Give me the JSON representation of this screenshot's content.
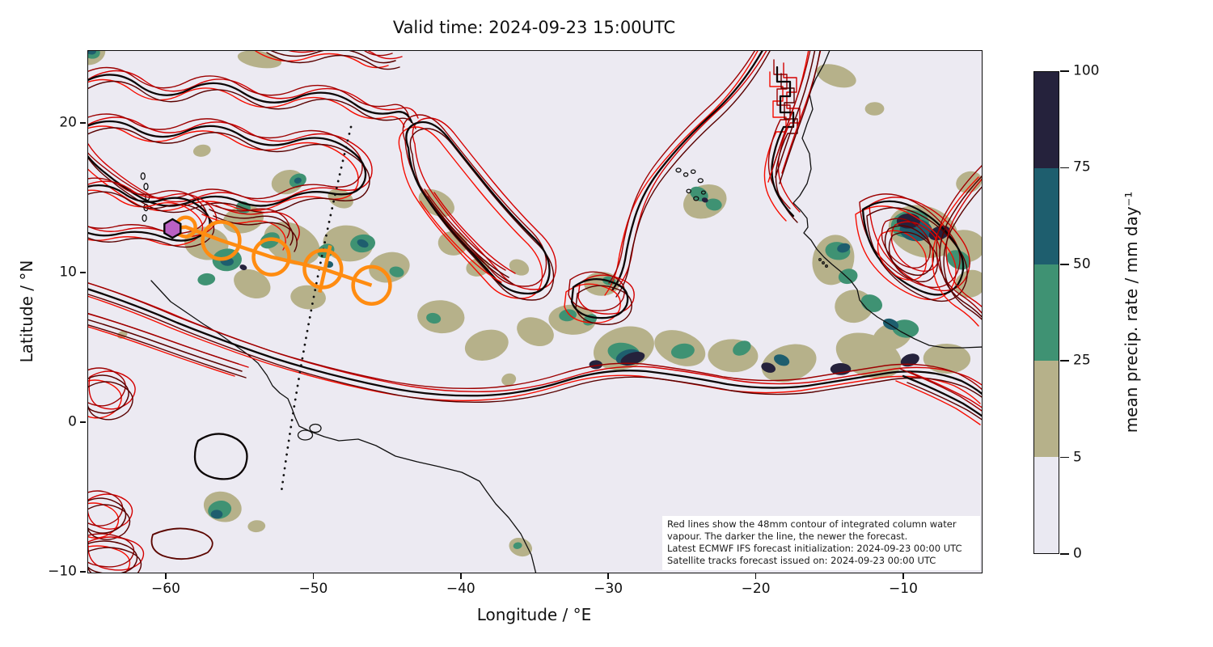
{
  "title": "Valid time: 2024-09-23 15:00UTC",
  "axes": {
    "xlabel": "Longitude / °E",
    "ylabel": "Latitude / °N",
    "xlim": [
      -65.3,
      -4.7
    ],
    "ylim": [
      -10,
      25
    ],
    "xticks": [
      -60,
      -50,
      -40,
      -30,
      -20,
      -10
    ],
    "yticks": [
      20,
      10,
      0,
      -10
    ]
  },
  "colorbar": {
    "label": "mean precip. rate / mm day⁻¹",
    "ticks": [
      0,
      5,
      25,
      50,
      75,
      100
    ],
    "level_edges": [
      0,
      5,
      25,
      50,
      75,
      100
    ],
    "level_colors": [
      "#eae9f2",
      "#b6b18a",
      "#3f9273",
      "#1e5e6e",
      "#25223c"
    ]
  },
  "annotation": {
    "lines": [
      "Red lines show the 48mm contour of integrated column water",
      "vapour. The darker the line, the newer the forecast.",
      "Latest ECMWF IFS forecast initialization: 2024-09-23 00:00 UTC",
      "Satellite tracks forecast issued on: 2024-09-23 00:00 UTC"
    ]
  },
  "chart_data": {
    "type": "map",
    "projection": "plate-carree",
    "map_extent": {
      "lon": [
        -65.3,
        -4.7
      ],
      "lat": [
        -10,
        25
      ]
    },
    "field": {
      "name": "mean precipitation rate",
      "units": "mm day-1",
      "level_edges": [
        0,
        5,
        25,
        50,
        75,
        100
      ],
      "level_colors": [
        "#eae9f2",
        "#b6b18a",
        "#3f9273",
        "#1e5e6e",
        "#25223c"
      ]
    },
    "icwv_contours": {
      "threshold_mm": 48,
      "meaning": "48mm contour of integrated column water vapour; darker line = newer forecast",
      "age_colors": [
        "#f60c00",
        "#d40000",
        "#9c0000",
        "#5a0100"
      ],
      "newest_color": "#0c0606"
    },
    "forecast_track": {
      "color": "#ff8c11",
      "marker_color": "#ba60c3",
      "current_position": {
        "lon": -59.6,
        "lat": 13.0
      },
      "positions": [
        {
          "lon": -58.7,
          "lat": 13.1,
          "r": 0.65
        },
        {
          "lon": -56.3,
          "lat": 12.2,
          "r": 1.25
        },
        {
          "lon": -52.9,
          "lat": 11.1,
          "r": 1.2
        },
        {
          "lon": -49.4,
          "lat": 10.3,
          "r": 1.25,
          "cross": true
        },
        {
          "lon": -46.1,
          "lat": 9.2,
          "r": 1.25
        }
      ]
    },
    "satellite_track": {
      "style": "dotted",
      "color": "#111111",
      "from": {
        "lon": -47.5,
        "lat": 19.8
      },
      "to": {
        "lon": -52.2,
        "lat": -4.6
      }
    },
    "precip_cells": [
      [
        -65.0,
        24.6,
        0.9,
        0.6,
        1
      ],
      [
        -65.1,
        24.8,
        0.6,
        0.45,
        2
      ],
      [
        -65.2,
        24.95,
        0.45,
        0.3,
        3
      ],
      [
        -65.3,
        25.1,
        0.35,
        0.25,
        4
      ],
      [
        -53.7,
        24.3,
        1.5,
        0.55,
        1
      ],
      [
        -57.6,
        18.2,
        0.6,
        0.4,
        1
      ],
      [
        -41.7,
        14.7,
        1.3,
        0.8,
        1
      ],
      [
        -40.6,
        12.0,
        1.0,
        0.8,
        1
      ],
      [
        -38.9,
        10.4,
        0.8,
        0.6,
        1
      ],
      [
        -36.1,
        10.4,
        0.7,
        0.5,
        1
      ],
      [
        -57.3,
        12.0,
        1.5,
        1.1,
        1
      ],
      [
        -54.8,
        13.6,
        1.4,
        0.9,
        1
      ],
      [
        -51.5,
        12.0,
        2.0,
        1.3,
        1
      ],
      [
        -47.7,
        12.0,
        1.7,
        1.2,
        1
      ],
      [
        -44.9,
        10.4,
        1.4,
        1.0,
        1
      ],
      [
        -54.2,
        9.3,
        1.3,
        0.9,
        1
      ],
      [
        -50.4,
        8.4,
        1.2,
        0.8,
        1
      ],
      [
        -51.8,
        16.1,
        1.1,
        0.8,
        1
      ],
      [
        -48.2,
        15.0,
        0.9,
        0.6,
        1
      ],
      [
        -55.9,
        10.9,
        1.0,
        0.75,
        2
      ],
      [
        -51.1,
        16.2,
        0.6,
        0.45,
        2
      ],
      [
        -54.8,
        14.4,
        0.5,
        0.4,
        2
      ],
      [
        -46.7,
        12.0,
        0.85,
        0.6,
        2
      ],
      [
        -49.2,
        11.5,
        0.6,
        0.45,
        2
      ],
      [
        -44.4,
        10.1,
        0.5,
        0.35,
        2
      ],
      [
        -57.3,
        9.6,
        0.6,
        0.4,
        2
      ],
      [
        -53.0,
        12.2,
        0.7,
        0.5,
        2
      ],
      [
        -55.9,
        10.8,
        0.45,
        0.3,
        3
      ],
      [
        -51.1,
        16.2,
        0.25,
        0.2,
        3
      ],
      [
        -46.7,
        12.0,
        0.4,
        0.25,
        3
      ],
      [
        -49.0,
        10.6,
        0.3,
        0.22,
        3
      ],
      [
        -54.8,
        10.4,
        0.25,
        0.18,
        4
      ],
      [
        -41.4,
        7.1,
        1.6,
        1.1,
        1
      ],
      [
        -38.3,
        5.2,
        1.5,
        1.0,
        1
      ],
      [
        -35.0,
        6.1,
        1.3,
        0.9,
        1
      ],
      [
        -32.5,
        6.9,
        1.6,
        1.0,
        1
      ],
      [
        -29.0,
        5.0,
        2.1,
        1.4,
        1
      ],
      [
        -25.2,
        5.0,
        1.8,
        1.1,
        1
      ],
      [
        -21.6,
        4.5,
        1.7,
        1.1,
        1
      ],
      [
        -17.8,
        4.0,
        1.9,
        1.2,
        1
      ],
      [
        -12.4,
        4.5,
        2.3,
        1.4,
        1
      ],
      [
        -7.1,
        4.3,
        1.6,
        1.0,
        1
      ],
      [
        -36.8,
        2.9,
        0.5,
        0.4,
        1
      ],
      [
        -36.0,
        -8.3,
        0.8,
        0.6,
        1
      ],
      [
        -30.5,
        9.3,
        1.2,
        0.8,
        1
      ],
      [
        -41.9,
        7.0,
        0.5,
        0.35,
        2
      ],
      [
        -32.8,
        7.2,
        0.6,
        0.4,
        2
      ],
      [
        -31.3,
        6.9,
        0.5,
        0.35,
        2
      ],
      [
        -29.0,
        4.7,
        1.1,
        0.65,
        2
      ],
      [
        -25.0,
        4.8,
        0.8,
        0.5,
        2
      ],
      [
        -21.0,
        5.0,
        0.65,
        0.45,
        2
      ],
      [
        -30.0,
        9.5,
        0.45,
        0.3,
        2
      ],
      [
        -36.2,
        -8.2,
        0.3,
        0.22,
        2
      ],
      [
        -28.7,
        4.4,
        0.85,
        0.5,
        3
      ],
      [
        -18.3,
        4.2,
        0.55,
        0.35,
        3
      ],
      [
        -30.9,
        3.9,
        0.45,
        0.3,
        4
      ],
      [
        -28.4,
        4.3,
        0.85,
        0.4,
        4
      ],
      [
        -19.2,
        3.7,
        0.5,
        0.32,
        4
      ],
      [
        -14.3,
        3.6,
        0.7,
        0.4,
        4
      ],
      [
        -9.6,
        4.2,
        0.65,
        0.4,
        4
      ],
      [
        -23.5,
        14.8,
        1.5,
        1.1,
        1
      ],
      [
        -23.9,
        15.3,
        0.65,
        0.45,
        2
      ],
      [
        -22.9,
        14.6,
        0.55,
        0.4,
        2
      ],
      [
        -23.5,
        14.9,
        0.22,
        0.16,
        4
      ],
      [
        -14.6,
        23.2,
        1.4,
        0.7,
        1
      ],
      [
        -12.0,
        21.0,
        0.65,
        0.45,
        1
      ],
      [
        -5.6,
        16.1,
        0.9,
        0.7,
        1
      ],
      [
        -8.7,
        12.8,
        2.4,
        1.7,
        1
      ],
      [
        -6.0,
        11.8,
        1.5,
        1.1,
        1
      ],
      [
        -9.6,
        13.3,
        1.3,
        0.9,
        2
      ],
      [
        -9.2,
        12.9,
        1.1,
        0.75,
        3
      ],
      [
        -9.7,
        13.5,
        0.8,
        0.5,
        4
      ],
      [
        -7.6,
        12.7,
        0.75,
        0.45,
        4
      ],
      [
        -6.3,
        10.9,
        0.85,
        0.6,
        2
      ],
      [
        -5.5,
        9.3,
        1.1,
        0.9,
        1
      ],
      [
        -14.8,
        10.9,
        1.4,
        1.7,
        1
      ],
      [
        -14.5,
        11.5,
        0.85,
        0.6,
        2
      ],
      [
        -14.1,
        11.7,
        0.45,
        0.3,
        3
      ],
      [
        -13.8,
        9.8,
        0.65,
        0.5,
        2
      ],
      [
        -13.4,
        7.8,
        1.3,
        1.1,
        1
      ],
      [
        -12.2,
        8.0,
        0.75,
        0.55,
        2
      ],
      [
        -10.9,
        6.6,
        0.55,
        0.35,
        3
      ],
      [
        -9.9,
        6.3,
        0.9,
        0.6,
        2
      ],
      [
        -10.8,
        5.8,
        1.4,
        0.9,
        1
      ],
      [
        -56.2,
        -5.6,
        1.3,
        1.0,
        1
      ],
      [
        -56.4,
        -5.8,
        0.8,
        0.6,
        2
      ],
      [
        -56.6,
        -6.1,
        0.4,
        0.3,
        3
      ],
      [
        -53.9,
        -6.9,
        0.6,
        0.4,
        1
      ],
      [
        -63.0,
        5.9,
        0.35,
        0.25,
        1
      ]
    ]
  }
}
